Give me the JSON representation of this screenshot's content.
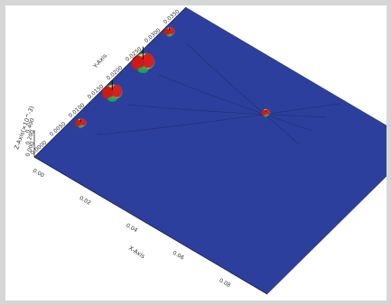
{
  "chart_data": {
    "type": "surface3d",
    "title": "",
    "xlabel": "X-Axis",
    "ylabel": "Y-Axis",
    "zlabel": "Z-Axis(×10^-3)",
    "x_ticks": [
      "0.00",
      "0.02",
      "0.04",
      "0.06",
      "0.08",
      "0.10"
    ],
    "y_ticks": [
      "0.0000",
      "0.0050",
      "0.0100",
      "0.0150",
      "0.0200",
      "0.0250",
      "0.0300",
      "0.0350",
      "0.0400"
    ],
    "z_ticks": [
      "0.000",
      "0.200",
      "0.400"
    ],
    "xlim": [
      0.0,
      0.1
    ],
    "ylim": [
      0.0,
      0.04
    ],
    "surface_color": "#2d3f9c",
    "peak_colors": [
      "#1fa65a",
      "#f2e230",
      "#f28a2a",
      "#d62020"
    ],
    "peaks": [
      {
        "x": 0.003,
        "y": 0.01,
        "height": 0.4,
        "size": 0.55
      },
      {
        "x": 0.003,
        "y": 0.018,
        "height": 0.8,
        "size": 1.0
      },
      {
        "x": 0.003,
        "y": 0.026,
        "height": 0.9,
        "size": 1.15
      },
      {
        "x": 0.002,
        "y": 0.034,
        "height": 0.4,
        "size": 0.55
      },
      {
        "x": 0.05,
        "y": 0.03,
        "height": 0.25,
        "size": 0.45
      }
    ]
  }
}
